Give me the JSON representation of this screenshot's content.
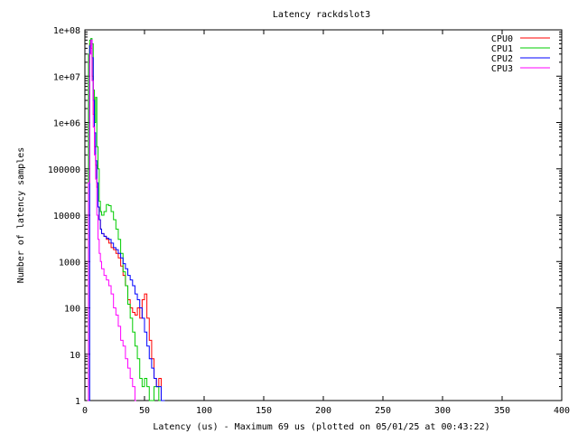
{
  "chart_data": {
    "type": "line",
    "title": "Latency rackdslot3",
    "xlabel": "Latency (us) - Maximum 69 us (plotted on 05/01/25 at 00:43:22)",
    "ylabel": "Number of latency samples",
    "xlim": [
      0,
      400
    ],
    "ylim": [
      1,
      100000000
    ],
    "yscale": "log",
    "x_ticks": [
      "0",
      "50",
      "100",
      "150",
      "200",
      "250",
      "300",
      "350",
      "400"
    ],
    "y_ticks": [
      "1",
      "10",
      "100",
      "1000",
      "10000",
      "100000",
      "1e+06",
      "1e+07",
      "1e+08"
    ],
    "grid": false,
    "legend_position": "top-right",
    "series": [
      {
        "name": "CPU0",
        "color": "#ff0000",
        "points": [
          [
            2,
            1
          ],
          [
            3,
            20000000
          ],
          [
            4,
            50000000
          ],
          [
            5,
            40000000
          ],
          [
            6,
            10000000
          ],
          [
            7,
            1500000
          ],
          [
            8,
            300000
          ],
          [
            9,
            120000
          ],
          [
            10,
            40000
          ],
          [
            11,
            15000
          ],
          [
            12,
            8000
          ],
          [
            13,
            5000
          ],
          [
            14,
            4000
          ],
          [
            16,
            3500
          ],
          [
            18,
            3000
          ],
          [
            20,
            2500
          ],
          [
            22,
            2000
          ],
          [
            24,
            1800
          ],
          [
            26,
            1500
          ],
          [
            28,
            1200
          ],
          [
            30,
            800
          ],
          [
            32,
            500
          ],
          [
            34,
            300
          ],
          [
            36,
            150
          ],
          [
            38,
            100
          ],
          [
            40,
            80
          ],
          [
            42,
            70
          ],
          [
            44,
            100
          ],
          [
            46,
            60
          ],
          [
            48,
            150
          ],
          [
            50,
            200
          ],
          [
            52,
            60
          ],
          [
            54,
            20
          ],
          [
            56,
            8
          ],
          [
            58,
            3
          ],
          [
            60,
            2
          ],
          [
            62,
            3
          ],
          [
            64,
            1
          ]
        ]
      },
      {
        "name": "CPU1",
        "color": "#00cc00",
        "points": [
          [
            2,
            1
          ],
          [
            3,
            30000000
          ],
          [
            4,
            60000000
          ],
          [
            5,
            65000000
          ],
          [
            6,
            50000000
          ],
          [
            7,
            5000000
          ],
          [
            8,
            1000000
          ],
          [
            9,
            3500000
          ],
          [
            10,
            300000
          ],
          [
            11,
            100000
          ],
          [
            12,
            20000
          ],
          [
            13,
            12000
          ],
          [
            14,
            10000
          ],
          [
            16,
            12000
          ],
          [
            18,
            17000
          ],
          [
            20,
            16000
          ],
          [
            22,
            12000
          ],
          [
            24,
            8000
          ],
          [
            26,
            5000
          ],
          [
            28,
            3000
          ],
          [
            30,
            1500
          ],
          [
            32,
            600
          ],
          [
            34,
            300
          ],
          [
            36,
            120
          ],
          [
            38,
            60
          ],
          [
            40,
            30
          ],
          [
            42,
            15
          ],
          [
            44,
            8
          ],
          [
            46,
            3
          ],
          [
            48,
            2
          ],
          [
            50,
            3
          ],
          [
            52,
            2
          ],
          [
            54,
            1
          ],
          [
            58,
            2
          ],
          [
            62,
            1
          ],
          [
            66,
            1
          ]
        ]
      },
      {
        "name": "CPU2",
        "color": "#0000ff",
        "points": [
          [
            3,
            1
          ],
          [
            4,
            45000000
          ],
          [
            5,
            60000000
          ],
          [
            6,
            25000000
          ],
          [
            7,
            3000000
          ],
          [
            8,
            600000
          ],
          [
            9,
            150000
          ],
          [
            10,
            50000
          ],
          [
            11,
            15000
          ],
          [
            12,
            8000
          ],
          [
            13,
            5000
          ],
          [
            14,
            4000
          ],
          [
            16,
            3500
          ],
          [
            18,
            3200
          ],
          [
            20,
            3000
          ],
          [
            22,
            2500
          ],
          [
            24,
            2000
          ],
          [
            26,
            1800
          ],
          [
            28,
            1500
          ],
          [
            30,
            1200
          ],
          [
            32,
            900
          ],
          [
            34,
            700
          ],
          [
            36,
            500
          ],
          [
            38,
            400
          ],
          [
            40,
            300
          ],
          [
            42,
            200
          ],
          [
            44,
            150
          ],
          [
            46,
            100
          ],
          [
            48,
            60
          ],
          [
            50,
            30
          ],
          [
            52,
            15
          ],
          [
            54,
            8
          ],
          [
            56,
            5
          ],
          [
            58,
            3
          ],
          [
            60,
            2
          ],
          [
            62,
            2
          ],
          [
            64,
            1
          ],
          [
            66,
            1
          ]
        ]
      },
      {
        "name": "CPU3",
        "color": "#ff00ff",
        "points": [
          [
            2,
            1
          ],
          [
            3,
            50000
          ],
          [
            4,
            30000000
          ],
          [
            5,
            60000000
          ],
          [
            6,
            8000000
          ],
          [
            7,
            800000
          ],
          [
            8,
            200000
          ],
          [
            9,
            60000
          ],
          [
            10,
            10000
          ],
          [
            11,
            3000
          ],
          [
            12,
            1500
          ],
          [
            13,
            1000
          ],
          [
            14,
            700
          ],
          [
            16,
            500
          ],
          [
            18,
            400
          ],
          [
            20,
            300
          ],
          [
            22,
            200
          ],
          [
            24,
            100
          ],
          [
            26,
            70
          ],
          [
            28,
            40
          ],
          [
            30,
            20
          ],
          [
            32,
            15
          ],
          [
            34,
            8
          ],
          [
            36,
            5
          ],
          [
            38,
            3
          ],
          [
            40,
            2
          ],
          [
            42,
            1
          ]
        ]
      }
    ]
  }
}
